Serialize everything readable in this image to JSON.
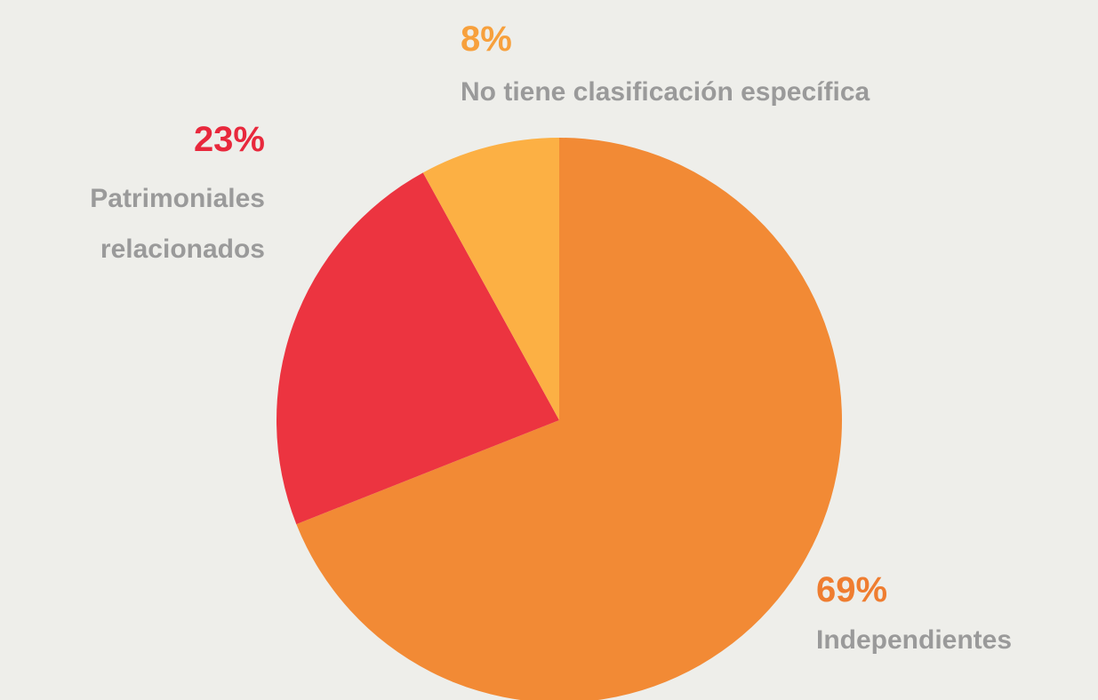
{
  "chart_data": {
    "type": "pie",
    "categories": [
      "Independientes",
      "Patrimoniales relacionados",
      "No tiene clasificación específica"
    ],
    "values": [
      69,
      23,
      8
    ],
    "value_labels": [
      "69%",
      "23%",
      "8%"
    ],
    "colors": [
      "#f28a35",
      "#ec3440",
      "#fcb044"
    ]
  }
}
